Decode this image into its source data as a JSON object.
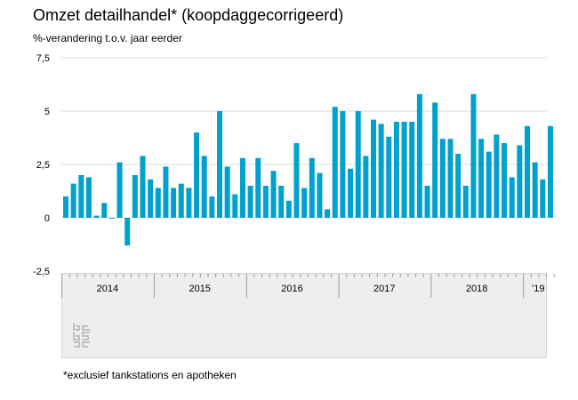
{
  "title": "Omzet detailhandel* (koopdaggecorrigeerd)",
  "subtitle": "%-verandering t.o.v. jaar eerder",
  "footnote": "*exclusief tankstations en apotheken",
  "colors": {
    "bar": "#00a1cd",
    "grid": "#d9d9d9",
    "band": "#eeeeee",
    "logo": "#bfbfbf"
  },
  "logo_icon": "cbs-logo-icon",
  "chart_data": {
    "type": "bar",
    "title": "Omzet detailhandel* (koopdaggecorrigeerd)",
    "ylabel": "%-verandering t.o.v. jaar eerder",
    "ylim": [
      -2.5,
      7.5
    ],
    "yticks": [
      7.5,
      5,
      2.5,
      0,
      -2.5
    ],
    "ytick_labels": [
      "7,5",
      "5",
      "2,5",
      "0",
      "-2,5"
    ],
    "grid": true,
    "x_start": "2014-01",
    "year_labels": [
      "2014",
      "2015",
      "2016",
      "2017",
      "2018",
      "'19"
    ],
    "values": [
      1.0,
      1.6,
      2.0,
      1.9,
      0.1,
      0.7,
      0.0,
      2.6,
      -1.3,
      2.0,
      2.9,
      1.8,
      1.4,
      2.4,
      1.4,
      1.6,
      1.4,
      4.0,
      2.9,
      1.0,
      5.0,
      2.4,
      1.1,
      2.8,
      1.5,
      2.8,
      1.5,
      2.2,
      1.5,
      0.8,
      3.5,
      1.4,
      2.8,
      2.1,
      0.4,
      5.2,
      5.0,
      2.3,
      5.0,
      2.9,
      4.6,
      4.4,
      3.8,
      4.5,
      4.5,
      4.5,
      5.8,
      1.5,
      5.4,
      3.7,
      3.7,
      3.0,
      1.5,
      5.8,
      3.7,
      3.1,
      3.9,
      3.5,
      1.9,
      3.4,
      4.3,
      2.6,
      1.8,
      4.3
    ]
  }
}
